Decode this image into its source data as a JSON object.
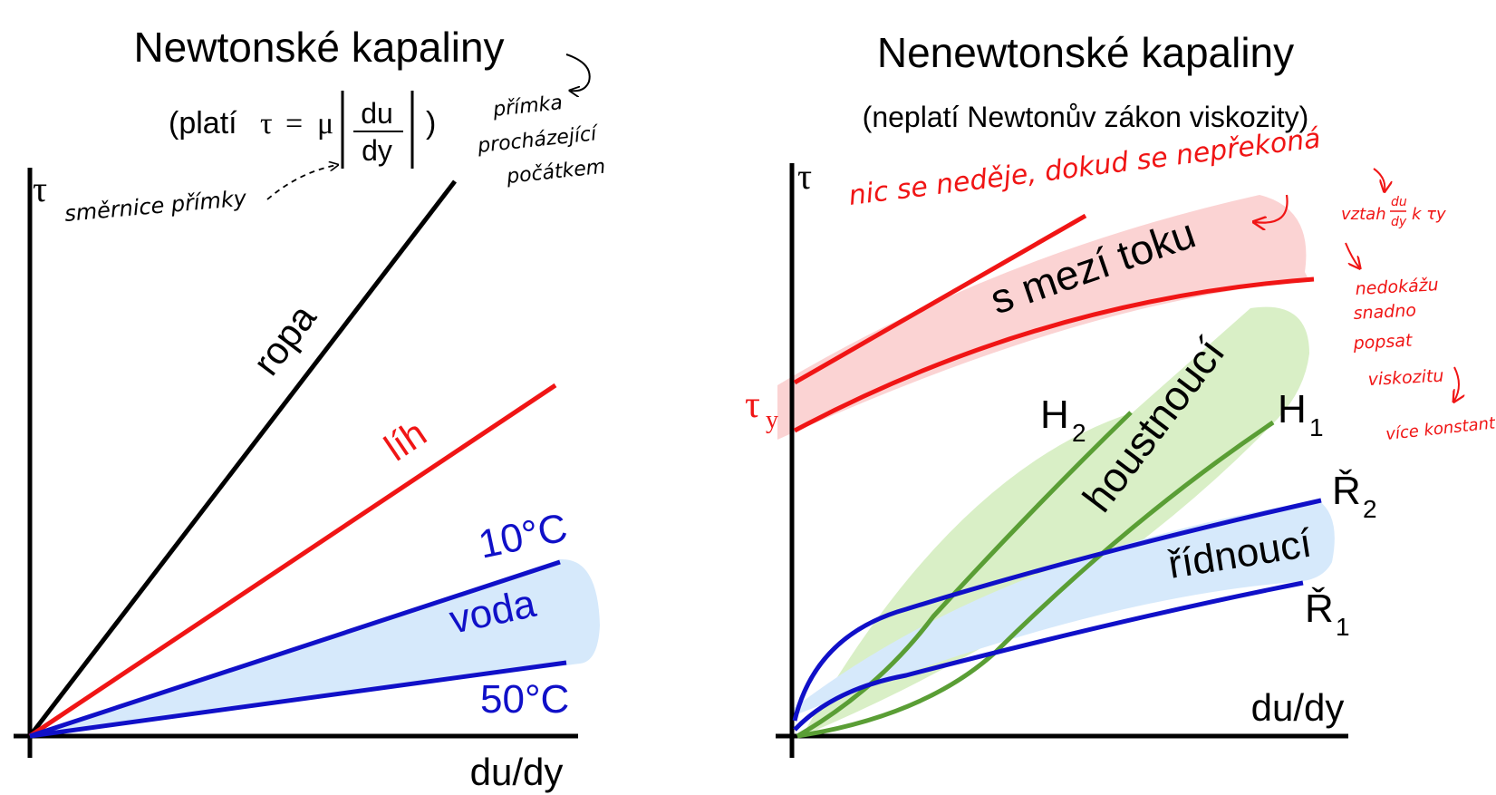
{
  "colors": {
    "black": "#000000",
    "red": "#f01515",
    "blue": "#1010c8",
    "green": "#5a9e35",
    "blue_fill": "#d6e9fb",
    "red_fill": "#fbd3d3",
    "green_fill": "#d9efc6"
  },
  "left": {
    "title": "Newtonské kapaliny",
    "subtitle_prefix": "(platí",
    "formula_tau": "τ",
    "formula_eq": "=",
    "formula_mu": "μ",
    "formula_num": "du",
    "formula_den": "dy",
    "subtitle_suffix": ")",
    "y_axis_label": "τ",
    "x_axis_label": "du/dy",
    "lines": {
      "ropa": "ropa",
      "lih": "líh",
      "voda": "voda",
      "t10": "10°C",
      "t50": "50°C"
    },
    "notes": {
      "smernice": "směrnice přímky",
      "primka_1": "přímka",
      "primka_2": "procházející",
      "primka_3": "počátkem"
    }
  },
  "right": {
    "title": "Nenewtonské kapaliny",
    "subtitle": "(neplatí Newtonův zákon viskozity)",
    "y_axis_label": "τ",
    "tau_y_main": "τ",
    "tau_y_sub": "y",
    "x_axis_label": "du/dy",
    "regions": {
      "mez": "s mezí toku",
      "houstnouci": "houstnoucí",
      "ridnouci": "řídnoucí"
    },
    "curve_labels": {
      "H2_main": "H",
      "H2_sub": "2",
      "H1_main": "H",
      "H1_sub": "1",
      "R2_main": "Ř",
      "R2_sub": "2",
      "R1_main": "Ř",
      "R1_sub": "1"
    },
    "notes": {
      "top": "nic se neděje, dokud se nepřekoná",
      "vztah_1": "vztah",
      "vztah_du": "du",
      "vztah_dy": "dy",
      "vztah_2": "k τy",
      "nedokazu_1": "nedokážu",
      "nedokazu_2": "snadno",
      "nedokazu_3": "popsat",
      "nedokazu_4": "viskozitu",
      "vice": "více konstant"
    }
  }
}
